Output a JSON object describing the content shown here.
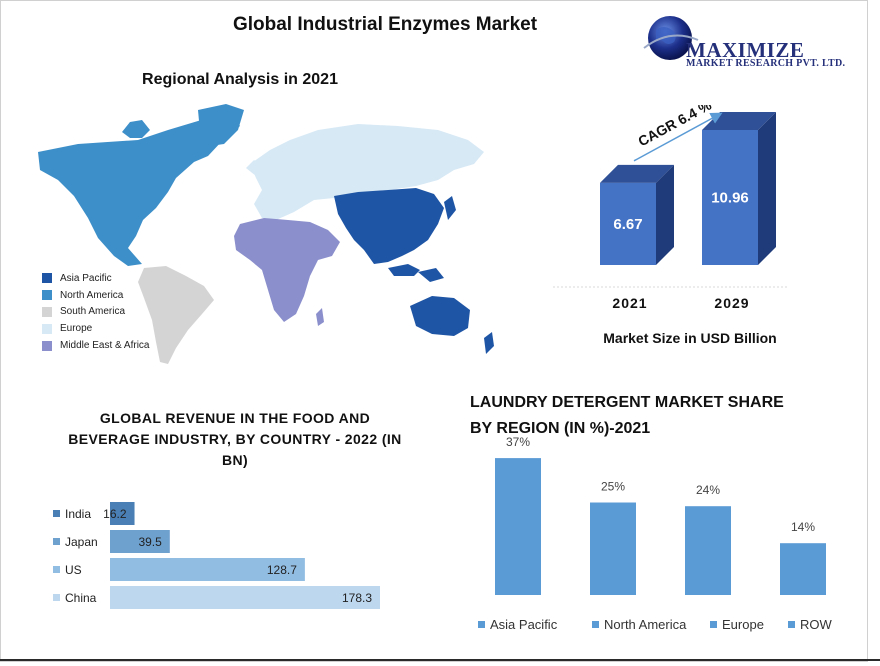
{
  "title": "Global Industrial  Enzymes Market",
  "logo": {
    "brand": "MAXIMIZE",
    "tagline": "MARKET RESEARCH PVT. LTD."
  },
  "map": {
    "subtitle": "Regional Analysis in 2021",
    "legend": [
      {
        "label": "Asia Pacific",
        "color": "#1f55a5"
      },
      {
        "label": "North America",
        "color": "#3d8fc9"
      },
      {
        "label": "South America",
        "color": "#d4d4d4"
      },
      {
        "label": "Europe",
        "color": "#d7e9f5"
      },
      {
        "label": "Middle East & Africa",
        "color": "#8b8fcc"
      }
    ]
  },
  "chart_data": [
    {
      "type": "bar",
      "categories": [
        "2021",
        "2029"
      ],
      "values": [
        6.67,
        10.96
      ],
      "title": "",
      "xlabel": "Market Size in USD Billion",
      "annotation": "CAGR 6.4 %",
      "colors": {
        "front": "#4472c4",
        "side": "#1f3b7a",
        "top": "#2f4f96"
      }
    },
    {
      "type": "bar",
      "orientation": "horizontal",
      "title": "GLOBAL REVENUE IN THE FOOD AND BEVERAGE INDUSTRY, BY COUNTRY - 2022 (IN BN)",
      "categories": [
        "India",
        "Japan",
        "US",
        "China"
      ],
      "values": [
        16.2,
        39.5,
        128.7,
        178.3
      ],
      "colors": [
        "#4a7fb5",
        "#6fa1cf",
        "#92bde3",
        "#bdd7ee"
      ]
    },
    {
      "type": "bar",
      "title": "LAUNDRY DETERGENT MARKET SHARE BY REGION (IN %)-2021",
      "categories": [
        "Asia Pacific",
        "North America",
        "Europe",
        "ROW"
      ],
      "values": [
        37,
        25,
        24,
        14
      ],
      "value_labels": [
        "37%",
        "25%",
        "24%",
        "14%"
      ],
      "ylim": [
        0,
        40
      ],
      "color": "#5b9bd5"
    }
  ]
}
